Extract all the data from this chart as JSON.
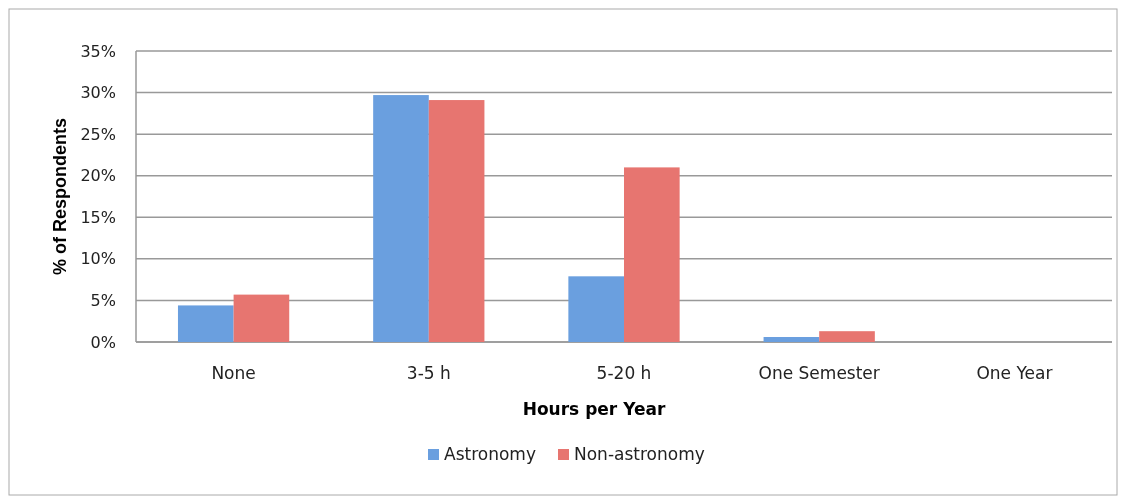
{
  "chart_data": {
    "type": "bar",
    "xlabel": "Hours per Year",
    "ylabel": "% of Respondents",
    "categories": [
      "None",
      "3-5 h",
      "5-20 h",
      "One Semester",
      "One Year"
    ],
    "series": [
      {
        "name": "Astronomy",
        "color": "#6a9fdf",
        "values": [
          4.4,
          29.7,
          7.9,
          0.6,
          0
        ]
      },
      {
        "name": "Non-astronomy",
        "color": "#e77570",
        "values": [
          5.7,
          29.1,
          21.0,
          1.3,
          0
        ]
      }
    ],
    "ylim": [
      0,
      35
    ],
    "yticks": [
      {
        "value": 0,
        "label": "0%"
      },
      {
        "value": 5,
        "label": "5%"
      },
      {
        "value": 10,
        "label": "10%"
      },
      {
        "value": 15,
        "label": "15%"
      },
      {
        "value": 20,
        "label": "20%"
      },
      {
        "value": 25,
        "label": "25%"
      },
      {
        "value": 30,
        "label": "30%"
      },
      {
        "value": 35,
        "label": "35%"
      }
    ],
    "grid": "y",
    "legend": "bottom"
  }
}
